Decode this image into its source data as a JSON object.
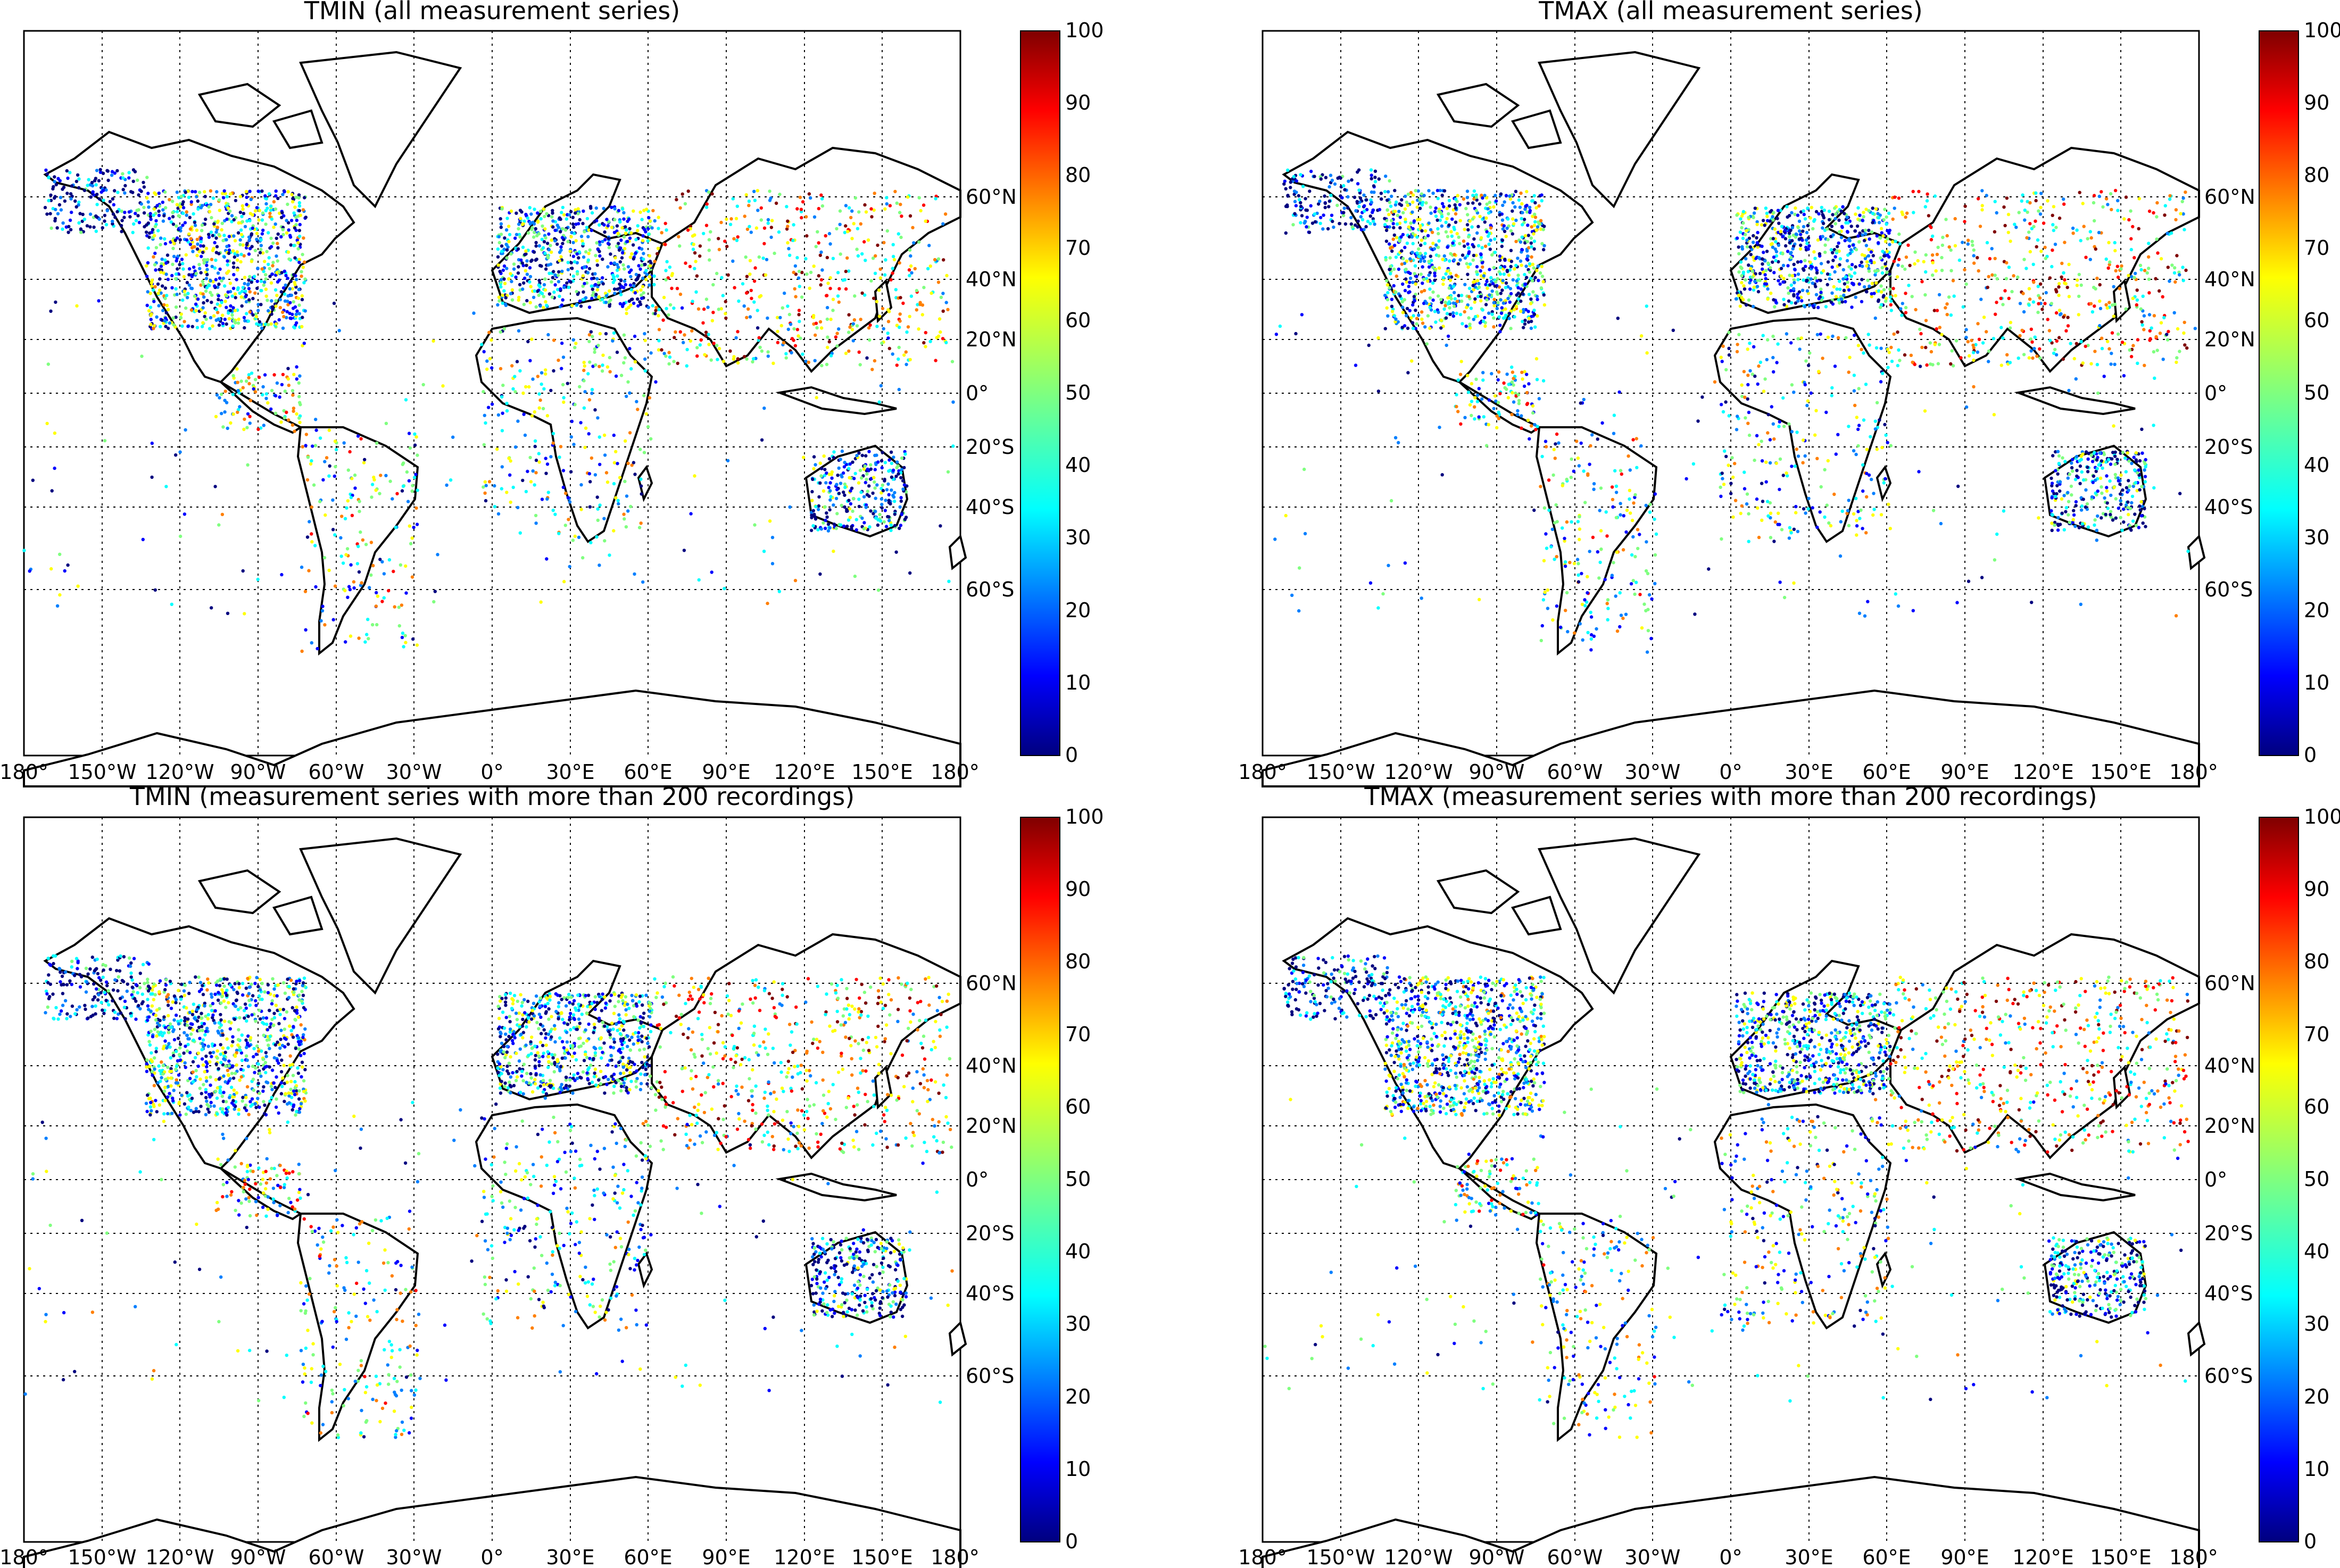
{
  "panels": [
    {
      "title": "TMIN (all measurement series)",
      "variant": "tmin_all"
    },
    {
      "title": "TMAX (all measurement series)",
      "variant": "tmax_all"
    },
    {
      "title": "TMIN (measurement series with more than 200 recordings)",
      "variant": "tmin_200"
    },
    {
      "title": "TMAX (measurement series with more than 200 recordings)",
      "variant": "tmax_200"
    }
  ],
  "x_ticks": [
    "180°",
    "150°W",
    "120°W",
    "90°W",
    "60°W",
    "30°W",
    "0°",
    "30°E",
    "60°E",
    "90°E",
    "120°E",
    "150°E",
    "180°"
  ],
  "y_ticks": [
    "60°N",
    "40°N",
    "20°N",
    "0°",
    "20°S",
    "40°S",
    "60°S"
  ],
  "colorbar": {
    "ticks": [
      "0",
      "10",
      "20",
      "30",
      "40",
      "50",
      "60",
      "70",
      "80",
      "90",
      "100"
    ],
    "range": [
      0,
      100
    ],
    "colormap": "jet"
  },
  "map": {
    "projection": "mercator",
    "lon_range": [
      -180,
      180
    ],
    "lat_range": [
      -80,
      80
    ],
    "parallels_deg": [
      60,
      40,
      20,
      0,
      -20,
      -40,
      -60
    ],
    "meridians_deg": [
      -180,
      -150,
      -120,
      -90,
      -60,
      -30,
      0,
      30,
      60,
      90,
      120,
      150,
      180
    ],
    "gridline_style": "dotted",
    "coastline_color": "#000000",
    "marker": "station dots colored by value"
  },
  "colors": {
    "jet_stops": [
      "#00007f",
      "#0000ff",
      "#007fff",
      "#00ffff",
      "#7fff7f",
      "#ffff00",
      "#ff7f00",
      "#ff0000",
      "#7f0000"
    ]
  }
}
